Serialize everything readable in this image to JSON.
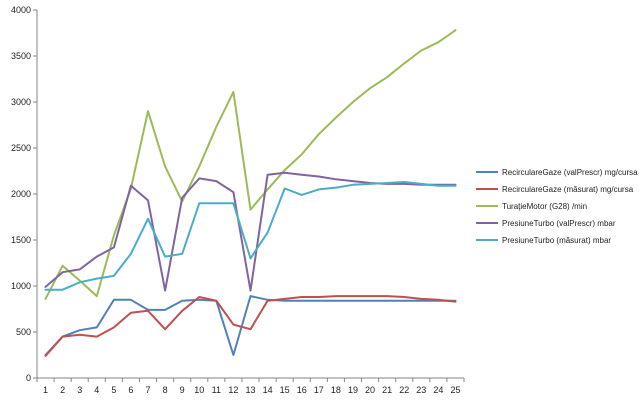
{
  "chart_data": {
    "type": "line",
    "title": "",
    "xlabel": "",
    "ylabel": "",
    "categories": [
      "1",
      "2",
      "3",
      "4",
      "5",
      "6",
      "7",
      "8",
      "9",
      "10",
      "11",
      "12",
      "13",
      "14",
      "15",
      "16",
      "17",
      "18",
      "19",
      "20",
      "21",
      "22",
      "23",
      "24",
      "25"
    ],
    "ylim": [
      0,
      4000
    ],
    "yticks": [
      0,
      500,
      1000,
      1500,
      2000,
      2500,
      3000,
      3500,
      4000
    ],
    "grid": false,
    "legend_position": "right",
    "series": [
      {
        "name": "RecirculareGaze (valPrescr)  mg/cursa",
        "color": "#4f81bd",
        "values": [
          250,
          450,
          520,
          550,
          850,
          850,
          740,
          740,
          840,
          850,
          840,
          250,
          890,
          850,
          840,
          840,
          840,
          840,
          840,
          840,
          840,
          840,
          840,
          840,
          840
        ]
      },
      {
        "name": "RecirculareGaze (măsurat)  mg/cursa",
        "color": "#c0504d",
        "values": [
          240,
          450,
          470,
          450,
          550,
          710,
          730,
          530,
          730,
          880,
          840,
          580,
          530,
          840,
          860,
          880,
          880,
          890,
          890,
          890,
          890,
          880,
          860,
          850,
          830
        ]
      },
      {
        "name": "TuraţieMotor (G28)  /min",
        "color": "#9bbb59",
        "values": [
          860,
          1220,
          1060,
          890,
          1550,
          2060,
          2900,
          2300,
          1920,
          2300,
          2730,
          3110,
          1830,
          2050,
          2260,
          2430,
          2650,
          2830,
          3000,
          3150,
          3270,
          3420,
          3560,
          3650,
          3780
        ]
      },
      {
        "name": "PresiuneTurbo (valPrescr)  mbar",
        "color": "#8064a2",
        "values": [
          990,
          1150,
          1180,
          1320,
          1420,
          2090,
          1930,
          950,
          1960,
          2170,
          2140,
          2020,
          950,
          2210,
          2230,
          2210,
          2190,
          2160,
          2140,
          2120,
          2110,
          2110,
          2100,
          2100,
          2100
        ]
      },
      {
        "name": "PresiuneTurbo (măsurat)  mbar",
        "color": "#4bacc6",
        "values": [
          960,
          960,
          1040,
          1080,
          1110,
          1350,
          1730,
          1320,
          1350,
          1900,
          1900,
          1900,
          1300,
          1580,
          2060,
          1990,
          2050,
          2070,
          2100,
          2110,
          2120,
          2130,
          2110,
          2090,
          2090
        ]
      }
    ]
  }
}
